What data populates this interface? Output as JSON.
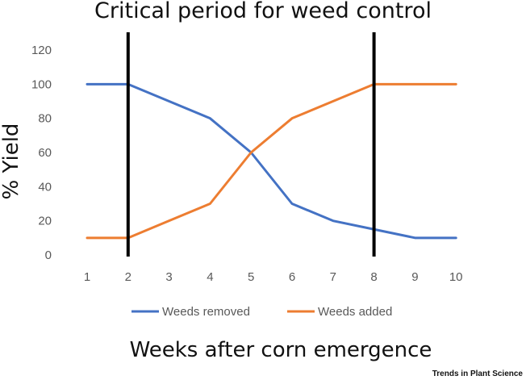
{
  "chart_data": {
    "type": "line",
    "title": "Critical period for weed control",
    "xlabel": "Weeks after corn emergence",
    "ylabel": "% Yield",
    "x": [
      1,
      2,
      3,
      4,
      5,
      6,
      7,
      8,
      9,
      10
    ],
    "ylim": [
      0,
      120
    ],
    "yticks": [
      0,
      20,
      40,
      60,
      80,
      100,
      120
    ],
    "grid": false,
    "legend_position": "bottom",
    "series": [
      {
        "name": "Weeds removed",
        "color": "#4472C4",
        "values": [
          100,
          100,
          90,
          80,
          60,
          30,
          20,
          15,
          10,
          10
        ]
      },
      {
        "name": "Weeds added",
        "color": "#ED7D31",
        "values": [
          10,
          10,
          20,
          30,
          60,
          80,
          90,
          100,
          100,
          100
        ]
      }
    ],
    "vertical_markers": [
      {
        "x": 2,
        "color": "#000000"
      },
      {
        "x": 8,
        "color": "#000000"
      }
    ]
  },
  "credit": "Trends in Plant Science"
}
